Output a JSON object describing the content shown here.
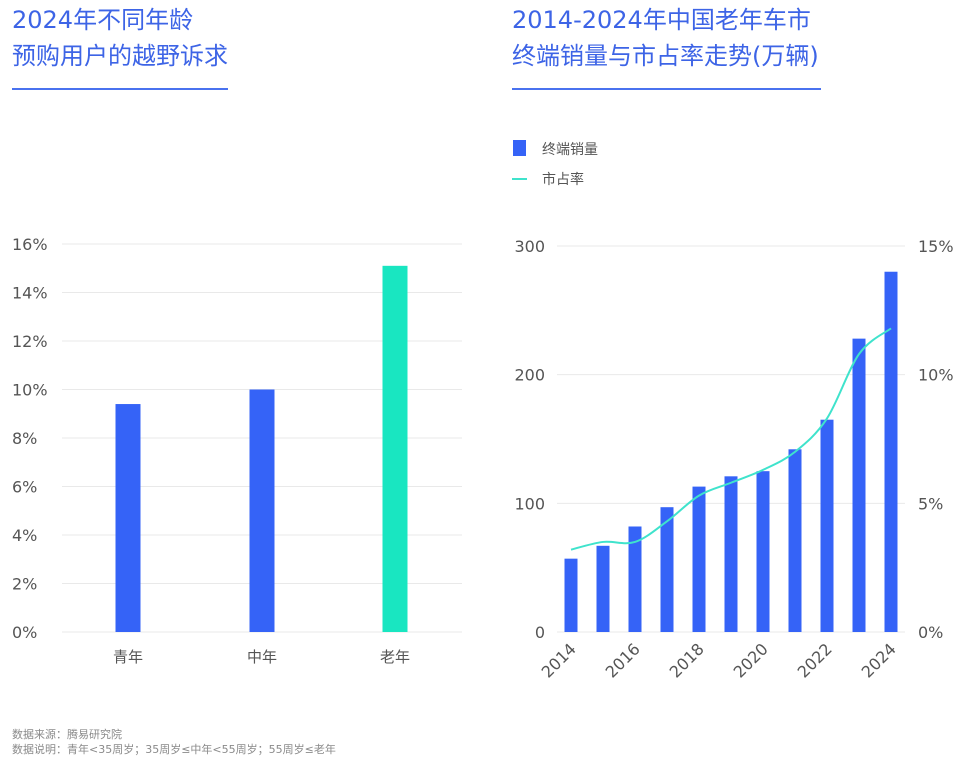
{
  "left_title": [
    "2024年不同年龄",
    "预购用户的越野诉求"
  ],
  "right_title": [
    "2014-2024年中国老年车市",
    "终端销量与市占率走势(万辆)"
  ],
  "footer": {
    "source": "数据来源：腾易研究院",
    "note": "数据说明：青年<35周岁；35周岁≤中年<55周岁；55周岁≤老年"
  },
  "colors": {
    "accent": "#3d64e6",
    "bar_blue": "#3563f7",
    "bar_teal": "#19e6c1",
    "line": "#3fe3cc",
    "grid": "#e9e9e9",
    "axis_text": "#555555"
  },
  "chart_data": [
    {
      "type": "bar",
      "title": "2024年不同年龄预购用户的越野诉求",
      "categories": [
        "青年",
        "中年",
        "老年"
      ],
      "values": [
        9.4,
        10.0,
        15.1
      ],
      "highlight": [
        false,
        false,
        true
      ],
      "ylim": [
        0,
        16
      ],
      "yticks": [
        0,
        2,
        4,
        6,
        8,
        10,
        12,
        14,
        16
      ],
      "ytick_labels": [
        "0%",
        "2%",
        "4%",
        "6%",
        "8%",
        "10%",
        "12%",
        "14%",
        "16%"
      ],
      "xlabel": "",
      "ylabel": ""
    },
    {
      "type": "bar+line",
      "title": "2014-2024年中国老年车市终端销量与市占率走势(万辆)",
      "x": [
        2014,
        2015,
        2016,
        2017,
        2018,
        2019,
        2020,
        2021,
        2022,
        2023,
        2024
      ],
      "xtick_labels": [
        "2014",
        "2016",
        "2018",
        "2020",
        "2022",
        "2024"
      ],
      "series": [
        {
          "name": "终端销量",
          "type": "bar",
          "axis": "left",
          "values": [
            57,
            67,
            82,
            97,
            113,
            121,
            125,
            142,
            165,
            228,
            280
          ]
        },
        {
          "name": "市占率",
          "type": "line",
          "axis": "right",
          "values": [
            3.2,
            3.5,
            3.5,
            4.3,
            5.3,
            5.8,
            6.3,
            7.0,
            8.3,
            10.8,
            11.8
          ]
        }
      ],
      "ylim_left": [
        0,
        300
      ],
      "yticks_left": [
        0,
        100,
        200,
        300
      ],
      "ytick_labels_left": [
        "0",
        "100",
        "200",
        "300"
      ],
      "ylim_right": [
        0,
        15
      ],
      "yticks_right": [
        0,
        5,
        10,
        15
      ],
      "ytick_labels_right": [
        "0%",
        "5%",
        "10%",
        "15%"
      ],
      "legend_position": "top-left"
    }
  ]
}
